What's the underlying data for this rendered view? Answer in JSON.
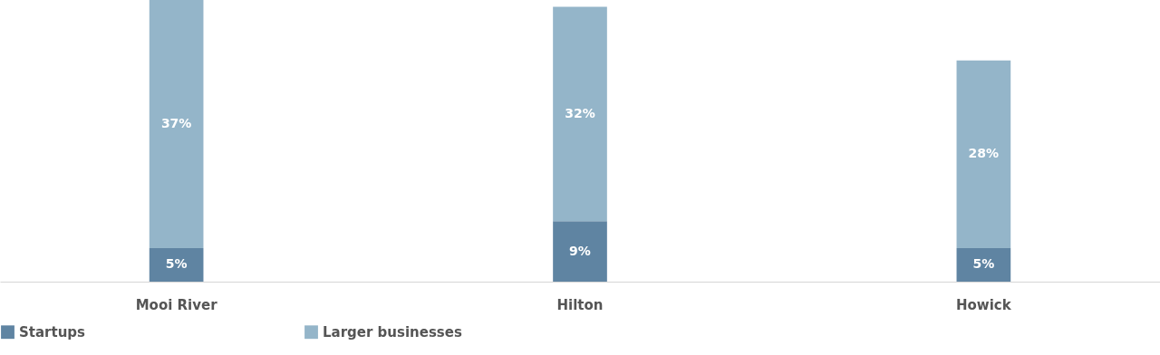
{
  "chart_data": {
    "type": "bar",
    "stacked": true,
    "categories": [
      "Mooi River",
      "Hilton",
      "Howick"
    ],
    "series": [
      {
        "name": "Startups",
        "color": "#5f84a2",
        "values": [
          5,
          9,
          5
        ],
        "value_labels": [
          "5%",
          "9%",
          "5%"
        ]
      },
      {
        "name": "Larger businesses",
        "color": "#94b5c9",
        "values": [
          37,
          32,
          28
        ],
        "value_labels": [
          "37%",
          "32%",
          "28%"
        ]
      }
    ],
    "legend": "bottom",
    "grid": false
  }
}
